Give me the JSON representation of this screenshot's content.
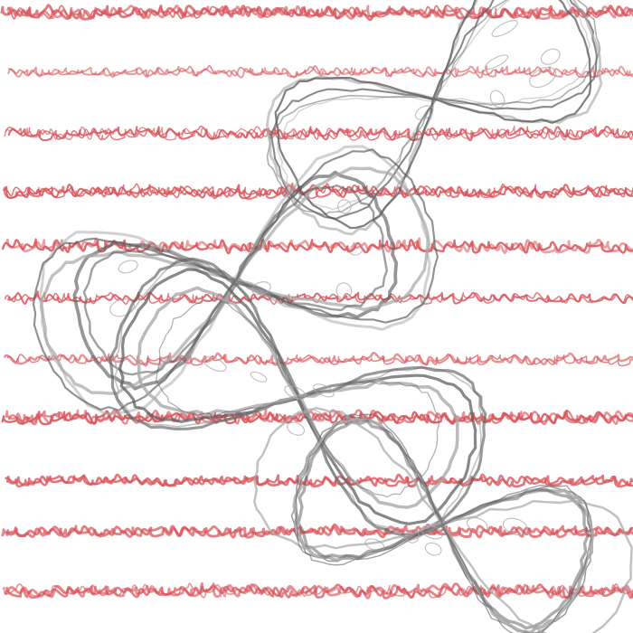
{
  "artwork": {
    "scribble_text": "vimetime",
    "colors": {
      "background": "#ffffff",
      "scribble_red": "#d9535a",
      "loop_gray": "#5f5f5f",
      "loop_gray_light": "#a8a8a8"
    },
    "style": {
      "red_band_count": 11,
      "red_band_styles": [
        "tangle",
        "script",
        "tangle",
        "tangle",
        "script-tangle",
        "script",
        "script",
        "tangle",
        "script",
        "script",
        "tangle"
      ],
      "gray_loop_cluster_count": 4
    }
  }
}
